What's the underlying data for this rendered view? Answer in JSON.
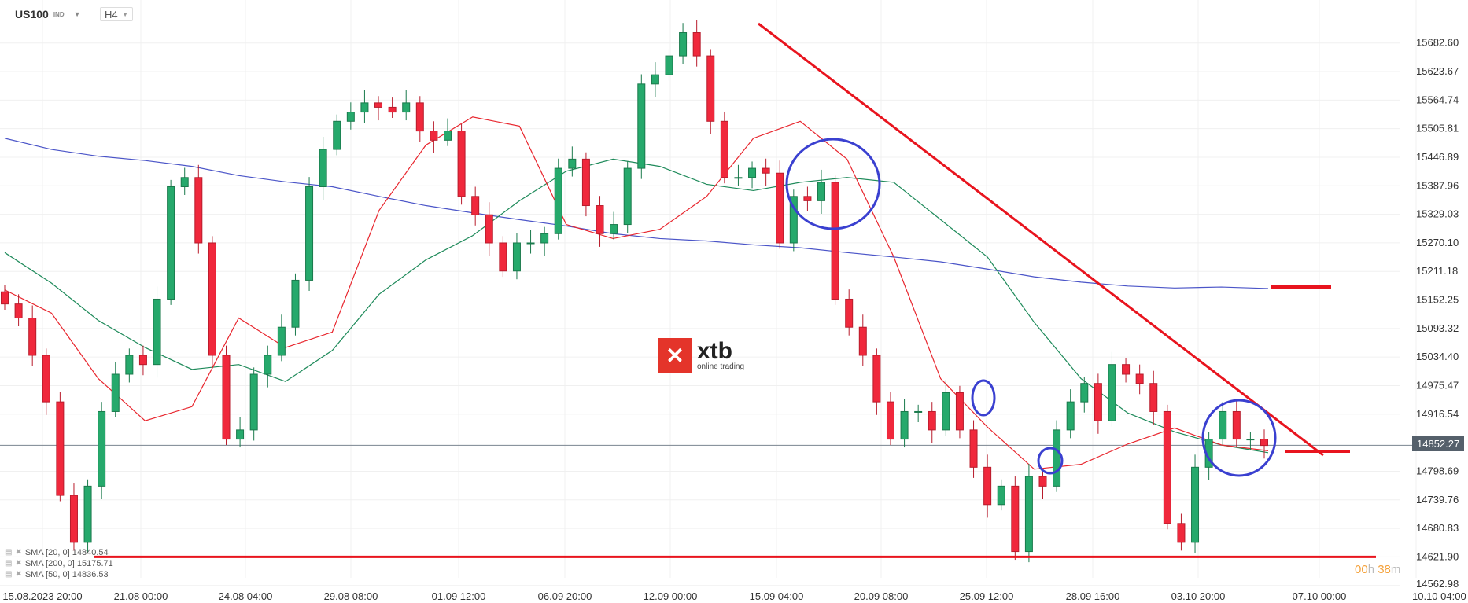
{
  "header": {
    "symbol": "US100",
    "symbol_type": "IND",
    "timeframe": "H4"
  },
  "timer": {
    "hours": "00",
    "h": "h",
    "minutes": "38",
    "m": "m"
  },
  "logo": {
    "brand": "xtb",
    "tagline": "online trading",
    "color": "#e4342a"
  },
  "indicators": [
    {
      "label": "SMA [20, 0] 14840.54",
      "color": "#e8262e"
    },
    {
      "label": "SMA [200, 0] 15175.71",
      "color": "#4b55c8"
    },
    {
      "label": "SMA [50, 0] 14836.53",
      "color": "#1e8a5a"
    }
  ],
  "chart_data": {
    "type": "candlestick",
    "ylim": [
      14540,
      15730
    ],
    "y_ticks": [
      "15682.60",
      "15623.67",
      "15564.74",
      "15505.81",
      "15446.89",
      "15387.96",
      "15329.03",
      "15270.10",
      "15211.18",
      "15152.25",
      "15093.32",
      "15034.40",
      "14975.47",
      "14916.54",
      "14798.69",
      "14739.76",
      "14680.83",
      "14621.90",
      "14562.98"
    ],
    "current_price": "14852.27",
    "x_ticks": [
      "15.08.2023  20:00",
      "21.08  00:00",
      "24.08  04:00",
      "29.08  08:00",
      "01.09  12:00",
      "06.09  20:00",
      "12.09  00:00",
      "15.09  04:00",
      "20.09  08:00",
      "25.09  12:00",
      "28.09  16:00",
      "03.10  20:00",
      "07.10  00:00",
      "10.10  04:00"
    ],
    "colors": {
      "up": "#26a96c",
      "down": "#f0283c",
      "sma20": "#e8262e",
      "sma50": "#1e8a5a",
      "sma200": "#4b55c8",
      "annotation_line": "#e8141e",
      "annotation_circle": "#3a40d0"
    },
    "closes": [
      15144,
      15115,
      15038,
      14942,
      14749,
      14652,
      14768,
      14922,
      14999,
      15038,
      15019,
      15154,
      15386,
      15405,
      15270,
      15038,
      14865,
      14884,
      14999,
      15038,
      15096,
      15193,
      15386,
      15463,
      15521,
      15540,
      15559,
      15550,
      15540,
      15559,
      15501,
      15482,
      15501,
      15366,
      15328,
      15270,
      15212,
      15270,
      15270,
      15289,
      15424,
      15443,
      15347,
      15289,
      15308,
      15424,
      15598,
      15617,
      15656,
      15704,
      15656,
      15521,
      15405,
      15405,
      15424,
      15414,
      15270,
      15366,
      15357,
      15395,
      15154,
      15096,
      15038,
      14942,
      14865,
      14922,
      14922,
      14884,
      14961,
      14884,
      14807,
      14730,
      14768,
      14633,
      14788,
      14768,
      14884,
      14942,
      14980,
      14903,
      15019,
      14999,
      14980,
      14922,
      14691,
      14652,
      14807,
      14865,
      14922,
      14865,
      14865,
      14852
    ],
    "sma20": [
      15173,
      15125,
      14990,
      14903,
      14932,
      15115,
      15054,
      15086,
      15337,
      15472,
      15530,
      15511,
      15308,
      15279,
      15298,
      15366,
      15486,
      15521,
      15443,
      15241,
      14990,
      14890,
      14803,
      14813,
      14855,
      14888,
      14853,
      14841
    ],
    "sma50": [
      15250,
      15187,
      15110,
      15054,
      15009,
      15019,
      14984,
      15048,
      15164,
      15235,
      15285,
      15357,
      15418,
      15443,
      15428,
      15391,
      15378,
      15395,
      15405,
      15395,
      15318,
      15241,
      15106,
      14990,
      14919,
      14880,
      14853,
      14837
    ],
    "sma200": [
      15486,
      15463,
      15449,
      15440,
      15428,
      15409,
      15396,
      15386,
      15366,
      15347,
      15332,
      15318,
      15305,
      15289,
      15279,
      15274,
      15266,
      15260,
      15250,
      15241,
      15231,
      15216,
      15200,
      15189,
      15181,
      15177,
      15179,
      15176
    ],
    "support_level": 14621.9
  }
}
